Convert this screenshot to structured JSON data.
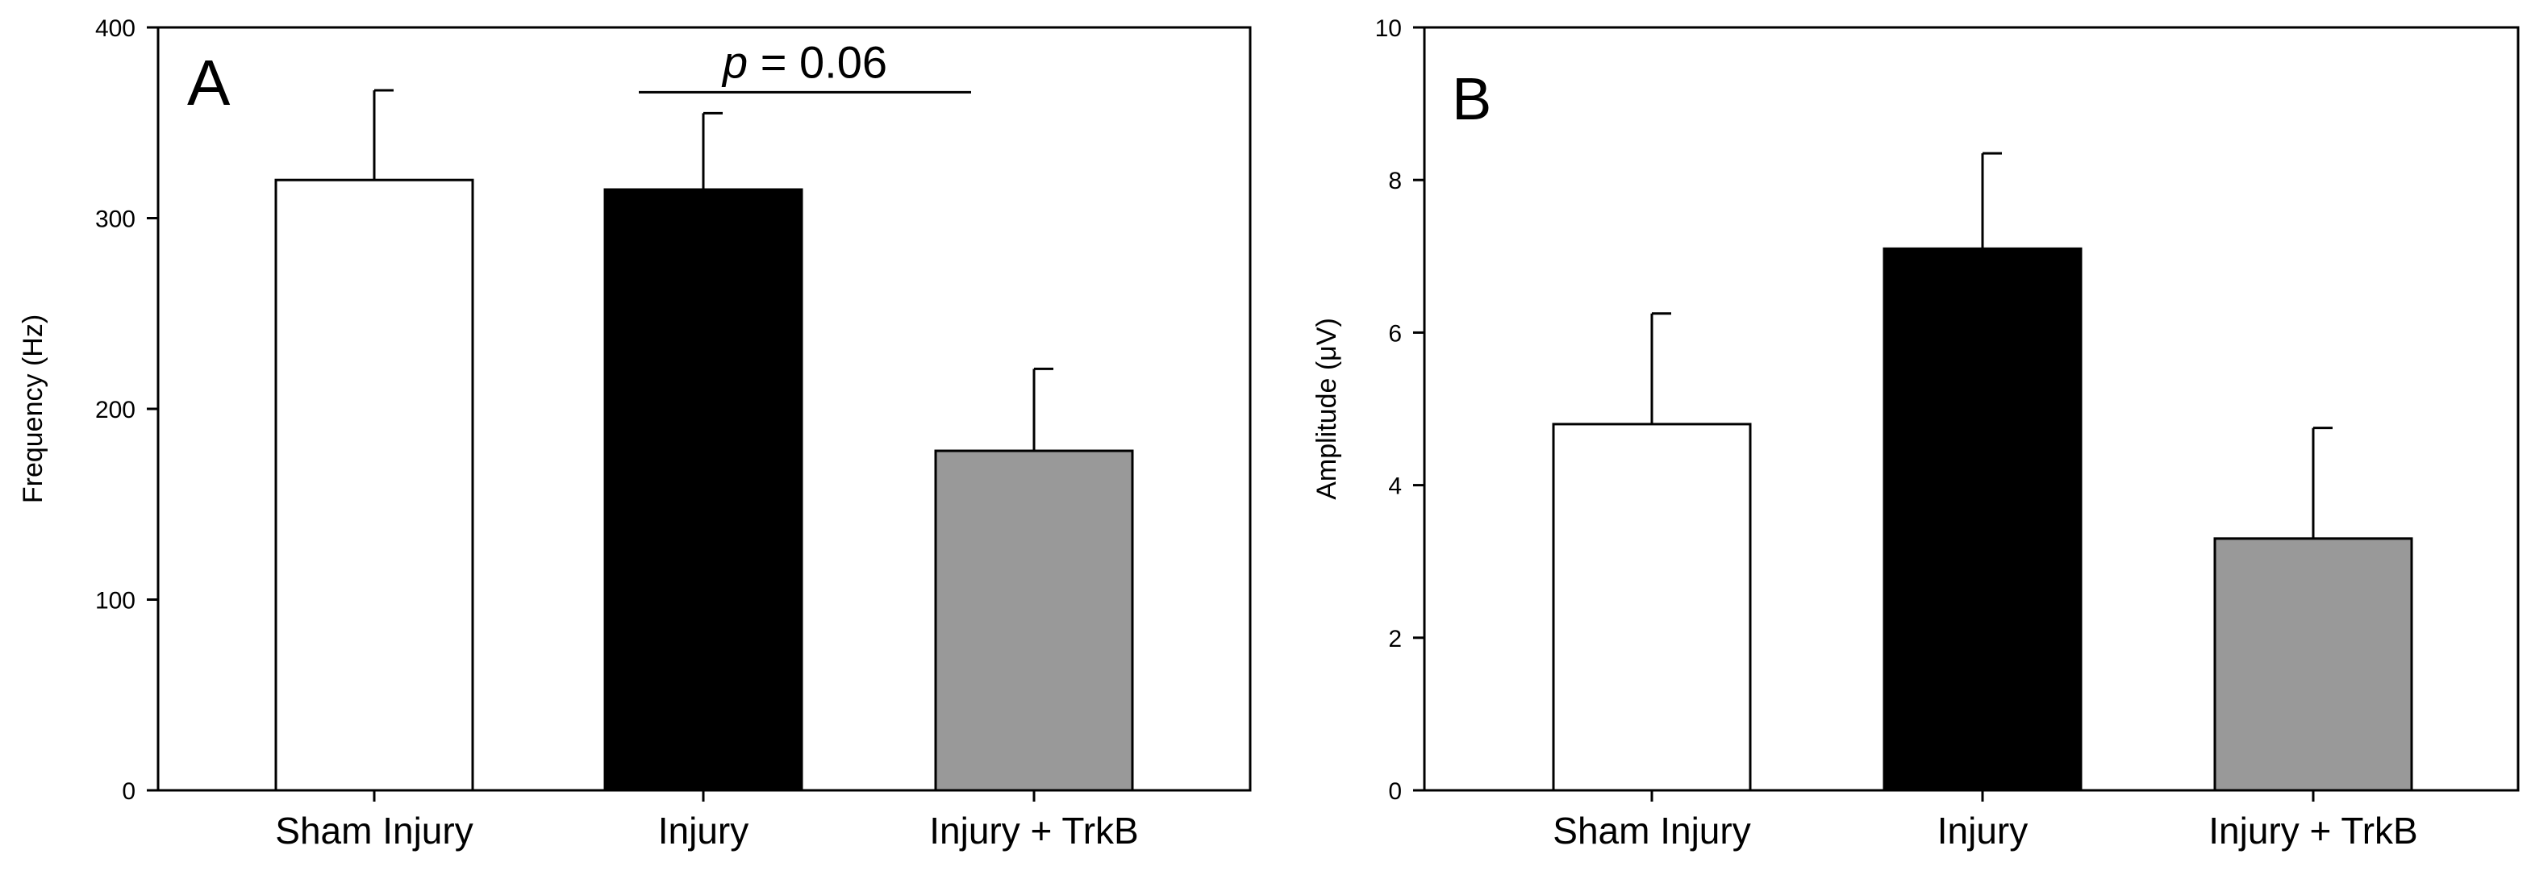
{
  "chart_data": [
    {
      "type": "bar",
      "panel_label": "A",
      "categories": [
        "Sham Injury",
        "Injury",
        "Injury + TrkB"
      ],
      "values": [
        320,
        315,
        178
      ],
      "error_upper": [
        367,
        355,
        221
      ],
      "bar_colors": [
        "#ffffff",
        "#000000",
        "#999999"
      ],
      "title": "",
      "xlabel": "",
      "ylabel": "Frequency (Hz)",
      "ylim": [
        0,
        400
      ],
      "yticks": [
        0,
        100,
        200,
        300,
        400
      ],
      "grid": false,
      "annotation": {
        "p_symbol": "p",
        "p_value_text": " = 0.06",
        "between": [
          1,
          2
        ],
        "level": 366
      }
    },
    {
      "type": "bar",
      "panel_label": "B",
      "categories": [
        "Sham Injury",
        "Injury",
        "Injury + TrkB"
      ],
      "values": [
        4.8,
        7.1,
        3.3
      ],
      "error_upper": [
        6.25,
        8.35,
        4.75
      ],
      "bar_colors": [
        "#ffffff",
        "#000000",
        "#999999"
      ],
      "title": "",
      "xlabel": "",
      "ylabel": "Amplitude (μV)",
      "ylim": [
        0,
        10
      ],
      "yticks": [
        0,
        2,
        4,
        6,
        8,
        10
      ],
      "grid": false
    }
  ]
}
